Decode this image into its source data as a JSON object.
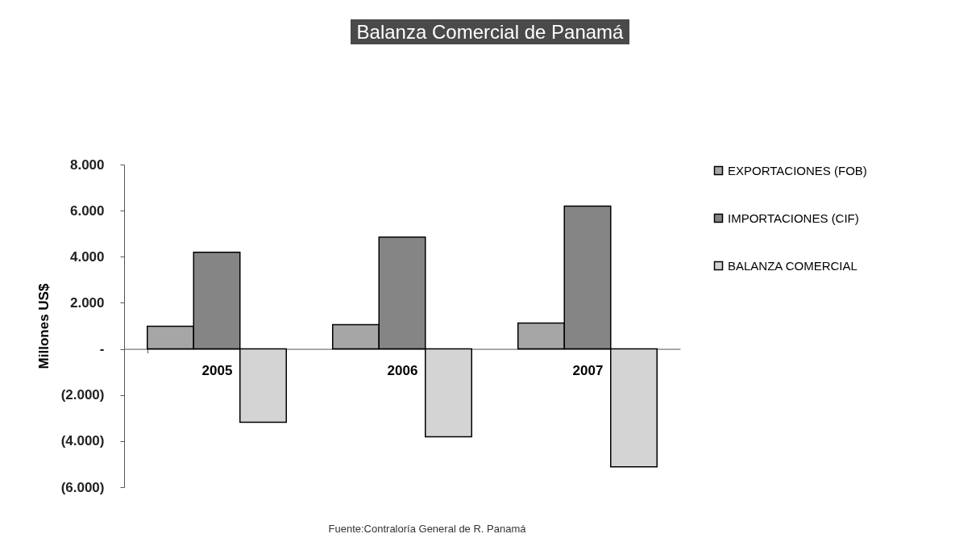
{
  "chart_data": {
    "type": "bar",
    "title": "Balanza Comercial de Panamá",
    "ylabel": "Millones US$",
    "categories": [
      "2005",
      "2006",
      "2007"
    ],
    "series": [
      {
        "name": "EXPORTACIONES (FOB)",
        "color": "#a6a6a6",
        "values": [
          980,
          1050,
          1120
        ]
      },
      {
        "name": "IMPORTACIONES (CIF)",
        "color": "#858585",
        "values": [
          4190,
          4850,
          6200
        ]
      },
      {
        "name": "BALANZA COMERCIAL",
        "color": "#d4d4d4",
        "values": [
          -3180,
          -3810,
          -5120
        ]
      }
    ],
    "ylim": [
      -6000,
      8000
    ],
    "yticks": [
      {
        "value": -6000,
        "label": "(6.000)"
      },
      {
        "value": -4000,
        "label": "(4.000)"
      },
      {
        "value": -2000,
        "label": "(2.000)"
      },
      {
        "value": 0,
        "label": "-"
      },
      {
        "value": 2000,
        "label": "2.000"
      },
      {
        "value": 4000,
        "label": "4.000"
      },
      {
        "value": 6000,
        "label": "6.000"
      },
      {
        "value": 8000,
        "label": "8.000"
      }
    ],
    "grid": false,
    "legend": "right",
    "annotations": [
      "Fuente:Contraloría General de R. Panamá"
    ]
  }
}
